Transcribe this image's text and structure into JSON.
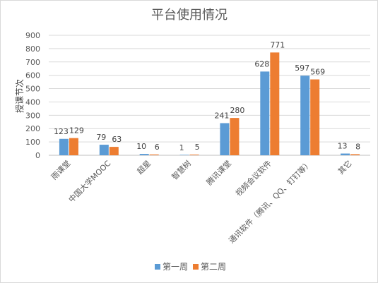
{
  "chart_data": {
    "type": "bar",
    "title": "平台使用情况",
    "xlabel": "",
    "ylabel": "授课节次",
    "ylim": [
      0,
      900
    ],
    "yticks": [
      0,
      100,
      200,
      300,
      400,
      500,
      600,
      700,
      800,
      900
    ],
    "grid": true,
    "legend": "bottom",
    "categories": [
      "雨课堂",
      "中国大学MOOC",
      "超星",
      "智慧树",
      "腾讯课堂",
      "视频会议软件",
      "通讯软件（腾讯、QQ、钉钉等）",
      "其它"
    ],
    "series": [
      {
        "name": "第一周",
        "color": "#5b9bd5",
        "values": [
          123,
          79,
          10,
          1,
          241,
          628,
          597,
          13
        ]
      },
      {
        "name": "第二周",
        "color": "#ed7d31",
        "values": [
          129,
          63,
          6,
          5,
          280,
          771,
          569,
          8
        ]
      }
    ]
  }
}
